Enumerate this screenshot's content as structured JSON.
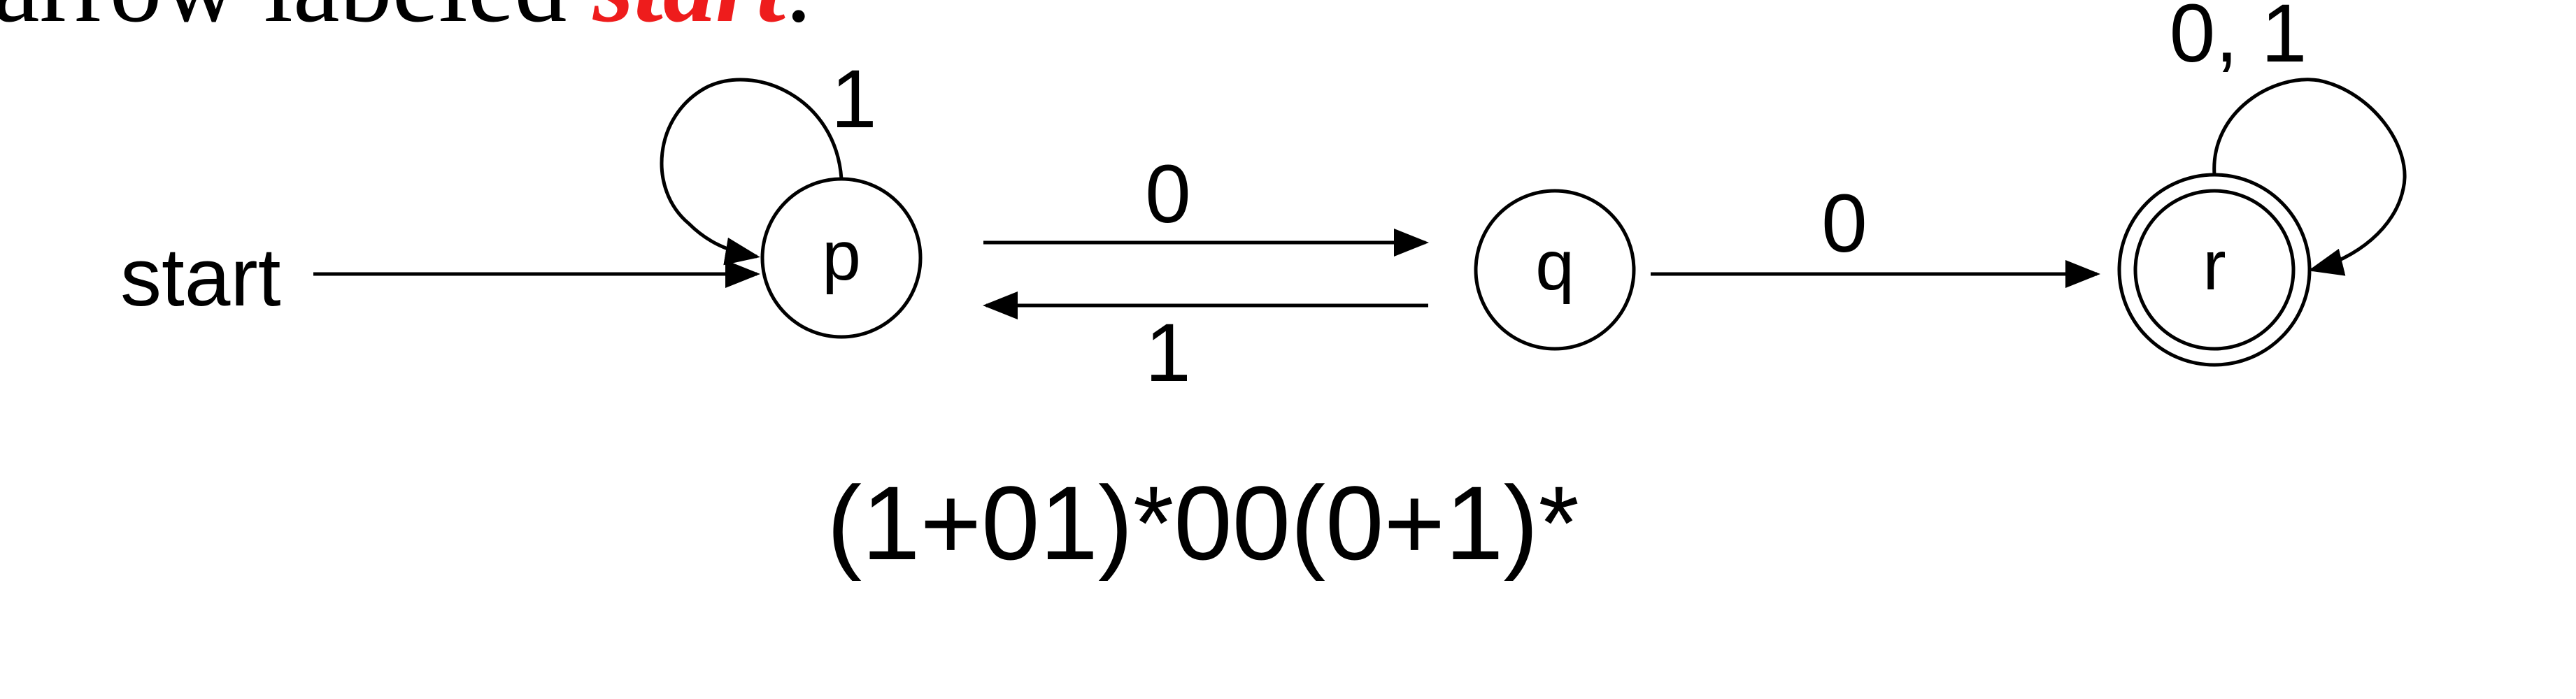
{
  "header_fragment": {
    "plain": "arrow labeled ",
    "emphasis": "start",
    "tail": ".",
    "emphasis_color": "#ee1c1c"
  },
  "states": {
    "p": "p",
    "q": "q",
    "r": "r"
  },
  "start_label": "start",
  "edges": {
    "p_self": "1",
    "p_to_q": "0",
    "q_to_p": "1",
    "q_to_r": "0",
    "r_self": "0, 1"
  },
  "regex": "(1+01)*00(0+1)*"
}
